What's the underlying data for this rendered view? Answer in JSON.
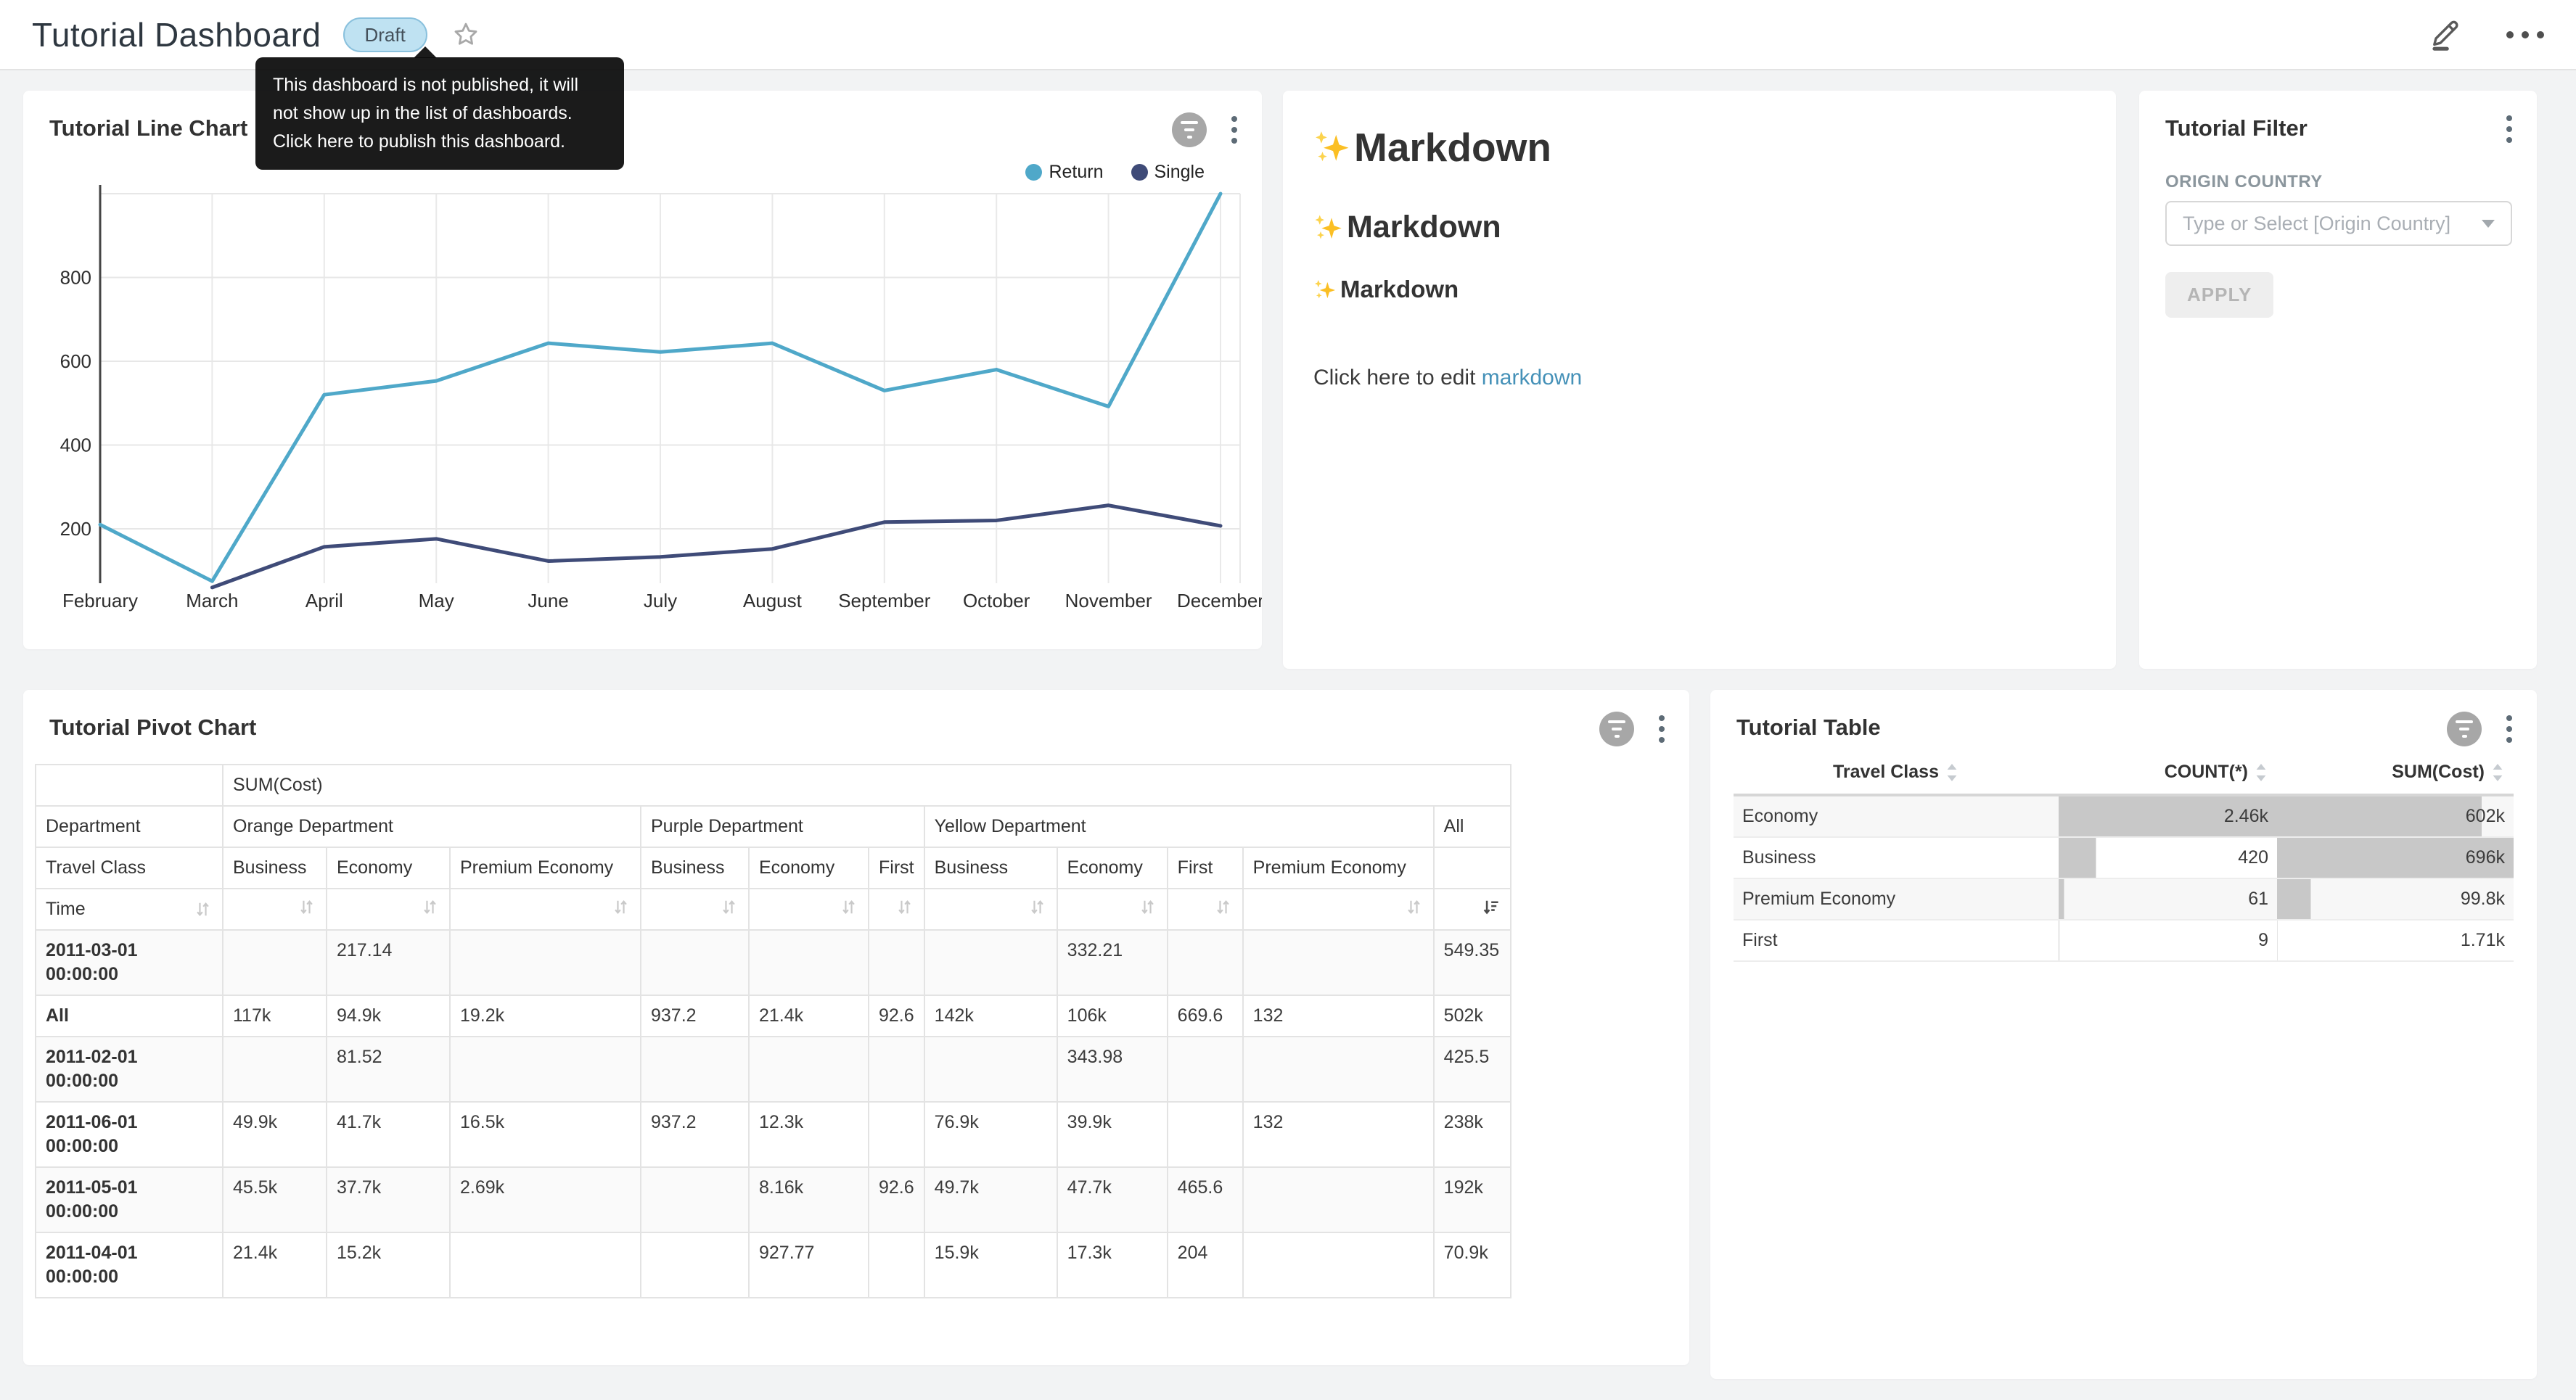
{
  "header": {
    "title": "Tutorial Dashboard",
    "status_badge": "Draft",
    "icons": {
      "favorite": "star-outline",
      "edit": "pencil-edit",
      "more": "ellipsis-horizontal"
    }
  },
  "tooltip": {
    "text": "This dashboard is not published, it will not show up in the list of dashboards. Click here to publish this dashboard."
  },
  "colors": {
    "return_series": "#4fa8c9",
    "single_series": "#3f4b78",
    "link": "#4591b8",
    "draft_badge_bg": "#bfe2f2",
    "table_bar": "#c8c8c8"
  },
  "line_chart_panel": {
    "title": "Tutorial Line Chart",
    "chart_data": {
      "type": "line",
      "x": [
        "February",
        "March",
        "April",
        "May",
        "June",
        "July",
        "August",
        "September",
        "October",
        "November",
        "December"
      ],
      "series": [
        {
          "name": "Return",
          "color": "#4fa8c9",
          "values": [
            210,
            75,
            520,
            553,
            643,
            622,
            643,
            530,
            580,
            492,
            1000
          ]
        },
        {
          "name": "Single",
          "color": "#3f4b78",
          "values": [
            null,
            60,
            157,
            176,
            123,
            133,
            152,
            216,
            220,
            256,
            207
          ]
        }
      ],
      "yticks": [
        200,
        400,
        600,
        800
      ],
      "ylim": [
        70,
        1010
      ],
      "grid": true,
      "legend_position": "top-right"
    }
  },
  "markdown_panel": {
    "icon": "sparkles-emoji",
    "heading1": "Markdown",
    "heading2": "Markdown",
    "heading3": "Markdown",
    "paragraph_prefix": "Click here to edit ",
    "link_text": "markdown"
  },
  "filter_panel": {
    "title": "Tutorial Filter",
    "field_label": "ORIGIN COUNTRY",
    "select_placeholder": "Type or Select [Origin Country]",
    "apply_label": "APPLY"
  },
  "pivot_panel": {
    "title": "Tutorial Pivot Chart",
    "chart_data": {
      "type": "table",
      "measure": "SUM(Cost)",
      "column_dimension": "Department",
      "row_dimension_1": "Travel Class",
      "row_dimension_2": "Time",
      "column_groups": [
        {
          "label": "Orange Department",
          "columns": [
            "Business",
            "Economy",
            "Premium Economy"
          ]
        },
        {
          "label": "Purple Department",
          "columns": [
            "Business",
            "Economy",
            "First"
          ]
        },
        {
          "label": "Yellow Department",
          "columns": [
            "Business",
            "Economy",
            "First",
            "Premium Economy"
          ]
        },
        {
          "label": "All",
          "columns": [
            ""
          ]
        }
      ],
      "sort": {
        "column": "All",
        "direction": "desc"
      },
      "rows": [
        {
          "label": "2011-03-01 00:00:00",
          "values": [
            "",
            "217.14",
            "",
            "",
            "",
            "",
            "",
            "332.21",
            "",
            "",
            "549.35"
          ]
        },
        {
          "label": "All",
          "values": [
            "117k",
            "94.9k",
            "19.2k",
            "937.2",
            "21.4k",
            "92.6",
            "142k",
            "106k",
            "669.6",
            "132",
            "502k"
          ]
        },
        {
          "label": "2011-02-01 00:00:00",
          "values": [
            "",
            "81.52",
            "",
            "",
            "",
            "",
            "",
            "343.98",
            "",
            "",
            "425.5"
          ]
        },
        {
          "label": "2011-06-01 00:00:00",
          "values": [
            "49.9k",
            "41.7k",
            "16.5k",
            "937.2",
            "12.3k",
            "",
            "76.9k",
            "39.9k",
            "",
            "132",
            "238k"
          ]
        },
        {
          "label": "2011-05-01 00:00:00",
          "values": [
            "45.5k",
            "37.7k",
            "2.69k",
            "",
            "8.16k",
            "92.6",
            "49.7k",
            "47.7k",
            "465.6",
            "",
            "192k"
          ]
        },
        {
          "label": "2011-04-01 00:00:00",
          "values": [
            "21.4k",
            "15.2k",
            "",
            "",
            "927.77",
            "",
            "15.9k",
            "17.3k",
            "204",
            "",
            "70.9k"
          ]
        }
      ]
    }
  },
  "table_panel": {
    "title": "Tutorial Table",
    "chart_data": {
      "type": "table",
      "columns": [
        "Travel Class",
        "COUNT(*)",
        "SUM(Cost)"
      ],
      "rows": [
        {
          "travel_class": "Economy",
          "count_label": "2.46k",
          "count_value": 2460,
          "sum_label": "602k",
          "sum_value": 602000
        },
        {
          "travel_class": "Business",
          "count_label": "420",
          "count_value": 420,
          "sum_label": "696k",
          "sum_value": 696000
        },
        {
          "travel_class": "Premium Economy",
          "count_label": "61",
          "count_value": 61,
          "sum_label": "99.8k",
          "sum_value": 99800
        },
        {
          "travel_class": "First",
          "count_label": "9",
          "count_value": 9,
          "sum_label": "1.71k",
          "sum_value": 1710
        }
      ],
      "bar_color": "#c8c8c8"
    }
  }
}
